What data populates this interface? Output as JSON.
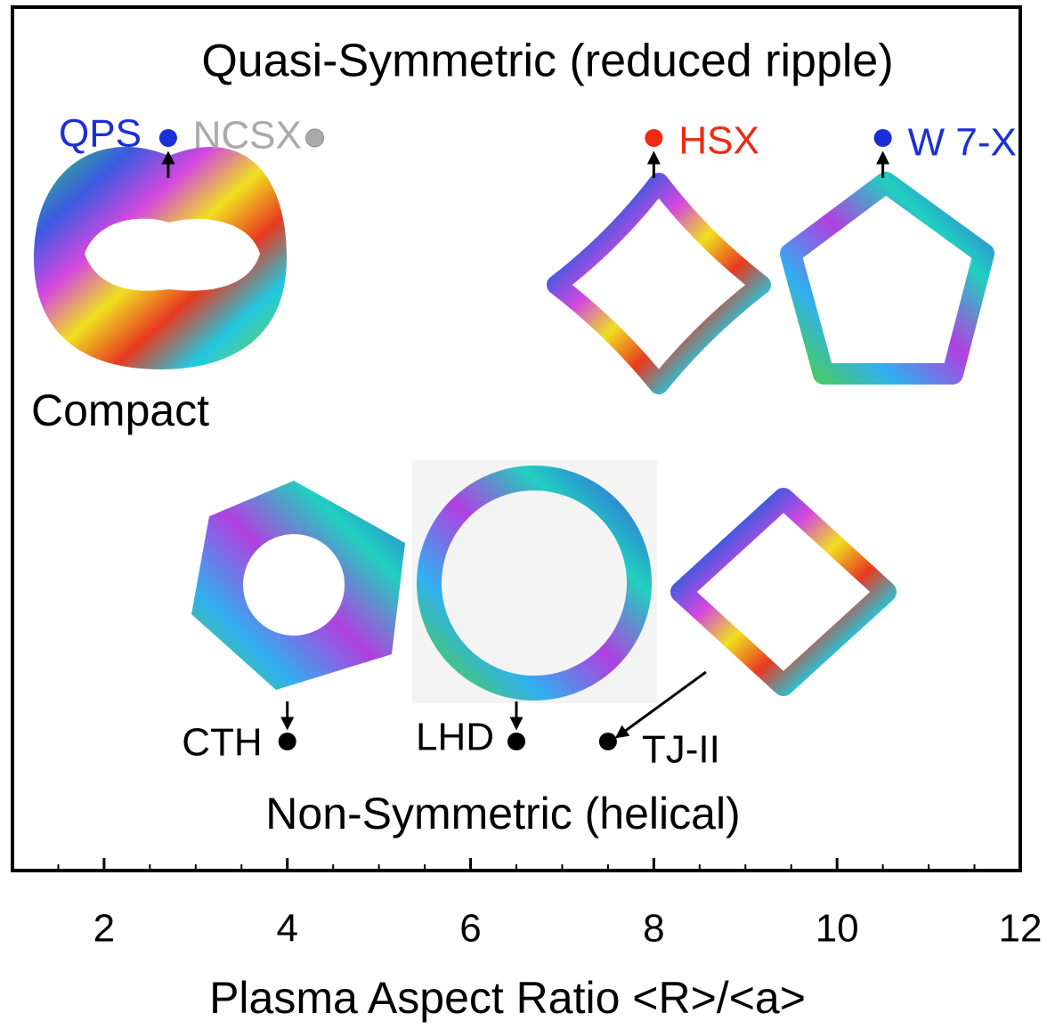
{
  "chart_data": {
    "type": "scatter",
    "xlabel": "Plasma Aspect Ratio <R>/<a>",
    "xlim": [
      1,
      12
    ],
    "xticks": [
      2,
      4,
      6,
      8,
      10,
      12
    ],
    "minor_xticks": [
      1.5,
      2.5,
      3,
      3.5,
      4.5,
      5,
      5.5,
      6.5,
      7,
      7.5,
      8.5,
      9,
      9.5,
      10.5,
      11,
      11.5
    ],
    "annotations": [
      "Compact"
    ],
    "series": [
      {
        "name": "Quasi-Symmetric (reduced ripple)",
        "labels": [
          "QPS",
          "NCSX",
          "HSX",
          "W 7-X"
        ],
        "x": [
          2.7,
          4.3,
          8.0,
          10.5
        ],
        "colors": [
          "#1a2fd8",
          "#aaaaaa",
          "#f02a10",
          "#1a2fd8"
        ]
      },
      {
        "name": "Non-Symmetric (helical)",
        "labels": [
          "CTH",
          "LHD",
          "TJ-II"
        ],
        "x": [
          4.0,
          6.5,
          7.5
        ],
        "colors": [
          "#000000",
          "#000000",
          "#000000"
        ]
      }
    ]
  }
}
